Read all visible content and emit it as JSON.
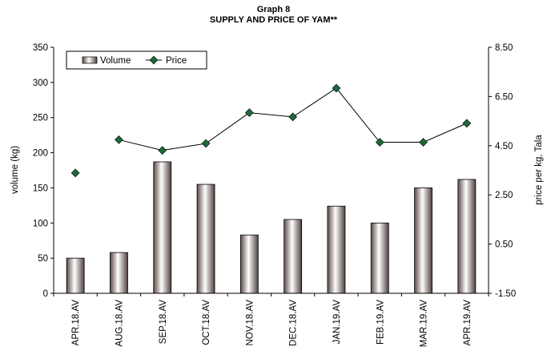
{
  "chart_data": {
    "type": "bar",
    "title": "Graph 8",
    "subtitle": "SUPPLY AND PRICE OF YAM**",
    "categories": [
      "APR.18.AV",
      "AUG.18.AV",
      "SEP.18.AV",
      "OCT.18.AV",
      "NOV.18.AV",
      "DEC.18.AV",
      "JAN.19.AV",
      "FEB.19.AV",
      "MAR.19.AV",
      "APR.19.AV"
    ],
    "series": [
      {
        "name": "Volume",
        "type": "bar",
        "axis": "left",
        "color": "#7a6a66",
        "values": [
          50,
          58,
          187,
          155,
          83,
          105,
          124,
          100,
          150,
          162
        ]
      },
      {
        "name": "Price",
        "type": "line",
        "axis": "right",
        "color": "#1a6b3a",
        "values": [
          3.39,
          4.74,
          4.31,
          4.59,
          5.84,
          5.67,
          6.84,
          4.64,
          4.64,
          5.41
        ]
      }
    ],
    "ylabel": "volume (kg)",
    "ylabel_right": "price per kg, Tala",
    "ylim": [
      0,
      350
    ],
    "yticks": [
      "0",
      "50",
      "100",
      "150",
      "200",
      "250",
      "300",
      "350"
    ],
    "ylim_right": [
      -1.5,
      8.5
    ],
    "yticks_right": [
      "-1.50",
      "0.50",
      "2.50",
      "4.50",
      "6.50",
      "8.50"
    ],
    "grid": false,
    "legend": "top-left"
  }
}
